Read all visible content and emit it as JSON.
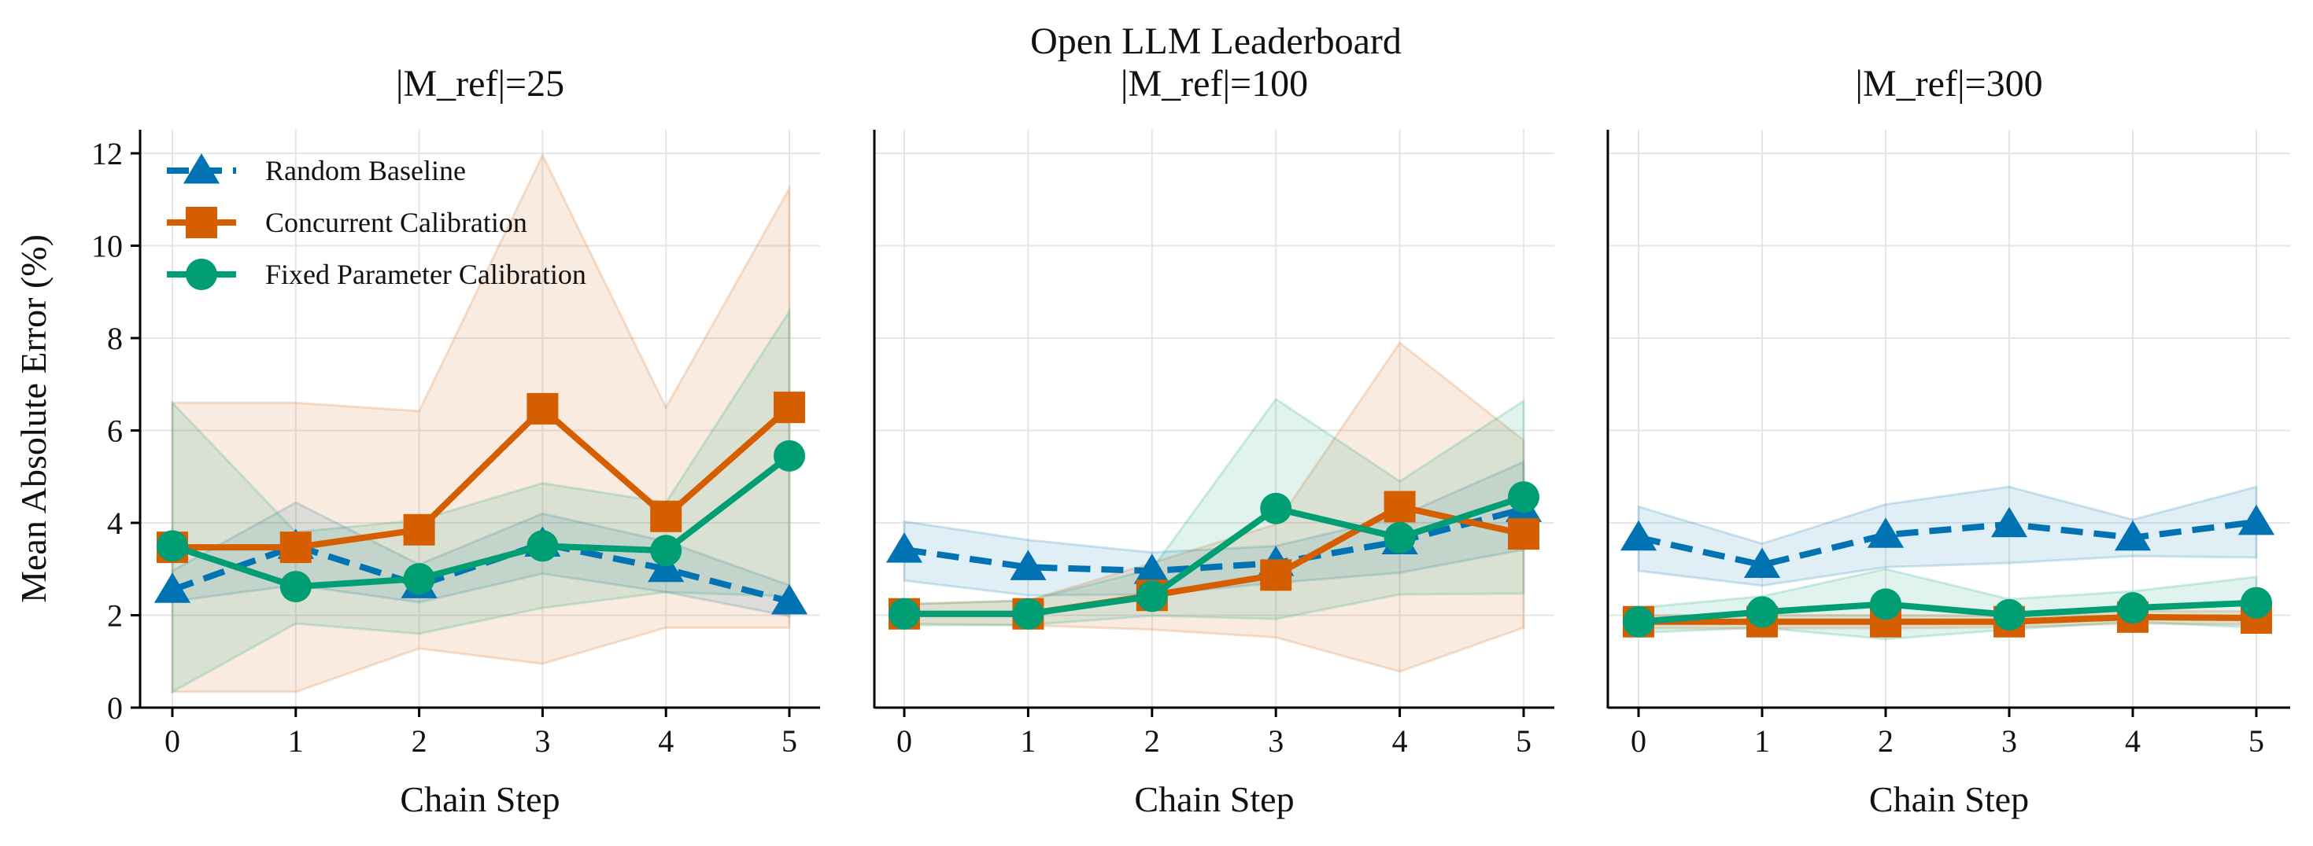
{
  "suptitle": "Open LLM Leaderboard",
  "colors": {
    "Random Baseline": "#0173b2",
    "Concurrent Calibration": "#d55e00",
    "Fixed Parameter Calibration": "#029e73"
  },
  "legend": {
    "placement": "upper-left",
    "entries": [
      "Random Baseline",
      "Concurrent Calibration",
      "Fixed Parameter Calibration"
    ]
  },
  "chart_data": [
    {
      "type": "line",
      "title": "|M_ref|=25",
      "xlabel": "Chain Step",
      "ylabel": "Mean Absolute Error (%)",
      "x": [
        0,
        1,
        2,
        3,
        4,
        5
      ],
      "ylim": [
        0,
        12.5
      ],
      "yticks": [
        0,
        2,
        4,
        6,
        8,
        10,
        12
      ],
      "grid": true,
      "series": [
        {
          "name": "Random Baseline",
          "marker": "triangle",
          "dash": true,
          "values": [
            2.55,
            3.5,
            2.65,
            3.55,
            3.0,
            2.3
          ],
          "lower": [
            2.3,
            2.65,
            2.28,
            2.9,
            2.5,
            1.98
          ],
          "upper": [
            2.96,
            4.44,
            3.1,
            4.2,
            3.6,
            2.65
          ]
        },
        {
          "name": "Concurrent Calibration",
          "marker": "square",
          "dash": false,
          "values": [
            3.47,
            3.47,
            3.85,
            6.47,
            4.14,
            6.5
          ],
          "lower": [
            0.34,
            0.34,
            1.28,
            0.95,
            1.73,
            1.73
          ],
          "upper": [
            6.6,
            6.6,
            6.42,
            11.96,
            6.5,
            11.24
          ]
        },
        {
          "name": "Fixed Parameter Calibration",
          "marker": "circle",
          "dash": false,
          "values": [
            3.5,
            2.62,
            2.79,
            3.5,
            3.4,
            5.45
          ],
          "lower": [
            0.34,
            1.82,
            1.6,
            2.16,
            2.5,
            2.41
          ],
          "upper": [
            6.6,
            3.8,
            4.06,
            4.86,
            4.44,
            8.58
          ]
        }
      ]
    },
    {
      "type": "line",
      "title": "|M_ref|=100",
      "xlabel": "Chain Step",
      "x": [
        0,
        1,
        2,
        3,
        4,
        5
      ],
      "ylim": [
        0,
        12.5
      ],
      "grid": true,
      "series": [
        {
          "name": "Random Baseline",
          "marker": "triangle",
          "dash": true,
          "values": [
            3.42,
            3.04,
            2.96,
            3.13,
            3.6,
            4.3
          ],
          "lower": [
            2.75,
            2.43,
            2.45,
            2.7,
            2.92,
            3.42
          ],
          "upper": [
            4.03,
            3.63,
            3.36,
            3.5,
            4.14,
            5.32
          ]
        },
        {
          "name": "Concurrent Calibration",
          "marker": "square",
          "dash": false,
          "values": [
            2.03,
            2.03,
            2.43,
            2.87,
            4.35,
            3.76
          ],
          "lower": [
            1.82,
            1.78,
            1.69,
            1.52,
            0.78,
            1.73
          ],
          "upper": [
            2.24,
            2.32,
            3.13,
            3.97,
            7.9,
            5.79
          ]
        },
        {
          "name": "Fixed Parameter Calibration",
          "marker": "circle",
          "dash": false,
          "values": [
            2.03,
            2.03,
            2.41,
            4.31,
            3.68,
            4.56
          ],
          "lower": [
            1.78,
            1.79,
            1.99,
            1.92,
            2.45,
            2.47
          ],
          "upper": [
            2.24,
            2.32,
            3.0,
            6.68,
            4.9,
            6.64
          ]
        }
      ]
    },
    {
      "type": "line",
      "title": "|M_ref|=300",
      "xlabel": "Chain Step",
      "x": [
        0,
        1,
        2,
        3,
        4,
        5
      ],
      "ylim": [
        0,
        12.5
      ],
      "grid": true,
      "series": [
        {
          "name": "Random Baseline",
          "marker": "triangle",
          "dash": true,
          "values": [
            3.68,
            3.09,
            3.74,
            3.97,
            3.68,
            4.02
          ],
          "lower": [
            2.96,
            2.64,
            3.04,
            3.13,
            3.28,
            3.25
          ],
          "upper": [
            4.35,
            3.55,
            4.4,
            4.78,
            4.07,
            4.78
          ]
        },
        {
          "name": "Concurrent Calibration",
          "marker": "square",
          "dash": false,
          "values": [
            1.86,
            1.86,
            1.86,
            1.86,
            1.96,
            1.94
          ],
          "lower": [
            1.72,
            1.72,
            1.72,
            1.74,
            1.82,
            1.8
          ],
          "upper": [
            2.0,
            2.0,
            2.0,
            1.98,
            2.1,
            2.08
          ]
        },
        {
          "name": "Fixed Parameter Calibration",
          "marker": "circle",
          "dash": false,
          "values": [
            1.86,
            2.07,
            2.24,
            2.01,
            2.16,
            2.27
          ],
          "lower": [
            1.62,
            1.73,
            1.48,
            1.69,
            1.86,
            1.73
          ],
          "upper": [
            2.16,
            2.41,
            3.0,
            2.35,
            2.52,
            2.83
          ]
        }
      ]
    }
  ]
}
